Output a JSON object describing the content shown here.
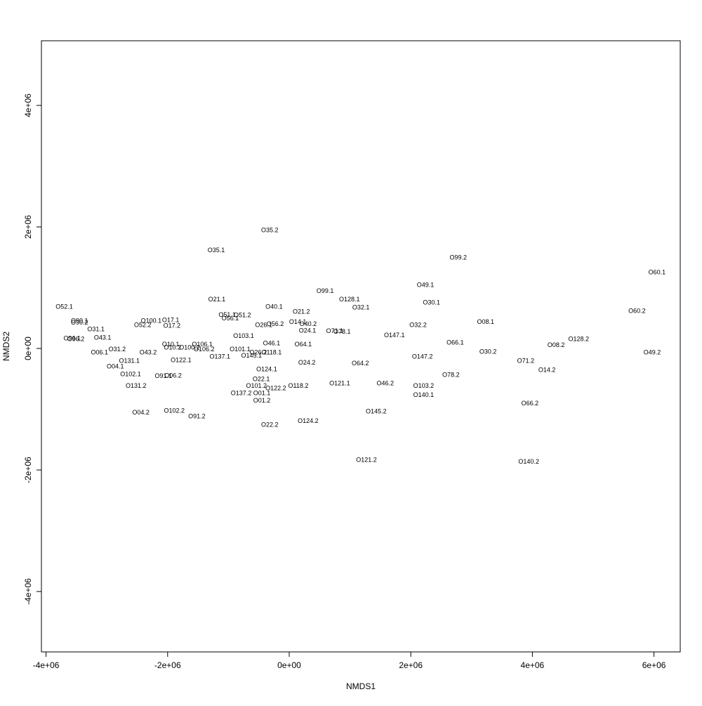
{
  "chart_data": {
    "type": "scatter",
    "xlabel": "NMDS1",
    "ylabel": "NMDS2",
    "xlim": [
      -4076000,
      6432000
    ],
    "ylim": [
      -4994000,
      5064000
    ],
    "xticks": [
      {
        "value": -4000000,
        "label": "-4e+06"
      },
      {
        "value": -2000000,
        "label": "-2e+06"
      },
      {
        "value": 0,
        "label": "0e+00"
      },
      {
        "value": 2000000,
        "label": "2e+06"
      },
      {
        "value": 4000000,
        "label": "4e+06"
      },
      {
        "value": 6000000,
        "label": "6e+06"
      }
    ],
    "yticks": [
      {
        "value": -4000000,
        "label": "-4e+06"
      },
      {
        "value": -2000000,
        "label": "-2e+06"
      },
      {
        "value": 0,
        "label": "0e+00"
      },
      {
        "value": 2000000,
        "label": "2e+06"
      },
      {
        "value": 4000000,
        "label": "4e+06"
      }
    ],
    "color": "#000000",
    "labels": [
      "O35.2",
      "O35.1",
      "O99.2",
      "O60.1",
      "O49.1",
      "O99.1",
      "O30.1",
      "O21.1",
      "O128.1",
      "O52.1",
      "O40.1",
      "O32.1",
      "O60.2",
      "O21.2",
      "O51.1",
      "O51.2",
      "O56.1",
      "O90.1",
      "O17.1",
      "O100.1",
      "O08.1",
      "O14.1",
      "O40.2",
      "O90.2",
      "O56.2",
      "O26.1",
      "O52.2",
      "O17.2",
      "O32.2",
      "O31.1",
      "O24.1",
      "O71.1",
      "O78.1",
      "O147.1",
      "O43.1",
      "O96.1",
      "O96.2",
      "O103.1",
      "O128.2",
      "O66.1",
      "O46.1",
      "O64.1",
      "O10.1",
      "O106.1",
      "O08.2",
      "O10.2",
      "O100.2",
      "O106.2",
      "O31.2",
      "O101.1",
      "O26.2",
      "O118.1",
      "O30.2",
      "O49.2",
      "O06.1",
      "O43.2",
      "O145.1",
      "O137.1",
      "O147.2",
      "O122.1",
      "O131.1",
      "O71.2",
      "O24.2",
      "O64.2",
      "O04.1",
      "O124.1",
      "O14.2",
      "O102.1",
      "O78.2",
      "O91.1",
      "O06.2",
      "O22.1",
      "O121.1",
      "O46.2",
      "O131.2",
      "O101.2",
      "O118.2",
      "O103.2",
      "O122.2",
      "O01.1",
      "O137.2",
      "O140.1",
      "O01.2",
      "O66.2",
      "O102.2",
      "O145.2",
      "O04.2",
      "O91.2",
      "O124.2",
      "O22.2",
      "O121.2",
      "O140.2"
    ],
    "x": [
      -320000,
      -1200000,
      2780000,
      6050000,
      2240000,
      590000,
      2340000,
      -1190000,
      990000,
      -3700000,
      -250000,
      1180000,
      5720000,
      200000,
      -1020000,
      -770000,
      -970000,
      -3450000,
      -1950000,
      -2270000,
      3230000,
      140000,
      310000,
      -3450000,
      -230000,
      -420000,
      -2410000,
      -1930000,
      2120000,
      -3180000,
      300000,
      750000,
      870000,
      1730000,
      -3070000,
      -3570000,
      -3510000,
      -750000,
      4760000,
      2730000,
      -290000,
      230000,
      -1950000,
      -1430000,
      4390000,
      -1920000,
      -1640000,
      -1400000,
      -2830000,
      -810000,
      -510000,
      -290000,
      3270000,
      5970000,
      -3120000,
      -2320000,
      -620000,
      -1140000,
      2190000,
      -1780000,
      -2630000,
      3890000,
      290000,
      1170000,
      -2860000,
      -370000,
      4240000,
      -2610000,
      2660000,
      -2070000,
      -1910000,
      -460000,
      830000,
      1580000,
      -2520000,
      -540000,
      150000,
      2210000,
      -220000,
      -450000,
      -790000,
      2210000,
      -450000,
      3960000,
      -1890000,
      1430000,
      -2440000,
      -1520000,
      310000,
      -320000,
      1270000,
      3940000
    ],
    "y": [
      1940000,
      1610000,
      1490000,
      1250000,
      1040000,
      940000,
      750000,
      800000,
      800000,
      680000,
      680000,
      670000,
      610000,
      600000,
      550000,
      540000,
      490000,
      450000,
      460000,
      450000,
      430000,
      430000,
      400000,
      420000,
      400000,
      380000,
      380000,
      370000,
      380000,
      310000,
      290000,
      280000,
      270000,
      210000,
      170000,
      160000,
      150000,
      200000,
      150000,
      90000,
      80000,
      60000,
      60000,
      60000,
      50000,
      10000,
      10000,
      -20000,
      -20000,
      -20000,
      -70000,
      -70000,
      -60000,
      -70000,
      -70000,
      -70000,
      -120000,
      -140000,
      -140000,
      -200000,
      -210000,
      -210000,
      -240000,
      -250000,
      -300000,
      -350000,
      -360000,
      -430000,
      -440000,
      -460000,
      -450000,
      -510000,
      -580000,
      -580000,
      -620000,
      -620000,
      -620000,
      -620000,
      -660000,
      -740000,
      -740000,
      -770000,
      -860000,
      -910000,
      -1030000,
      -1040000,
      -1060000,
      -1120000,
      -1200000,
      -1260000,
      -1840000,
      -1870000
    ]
  }
}
